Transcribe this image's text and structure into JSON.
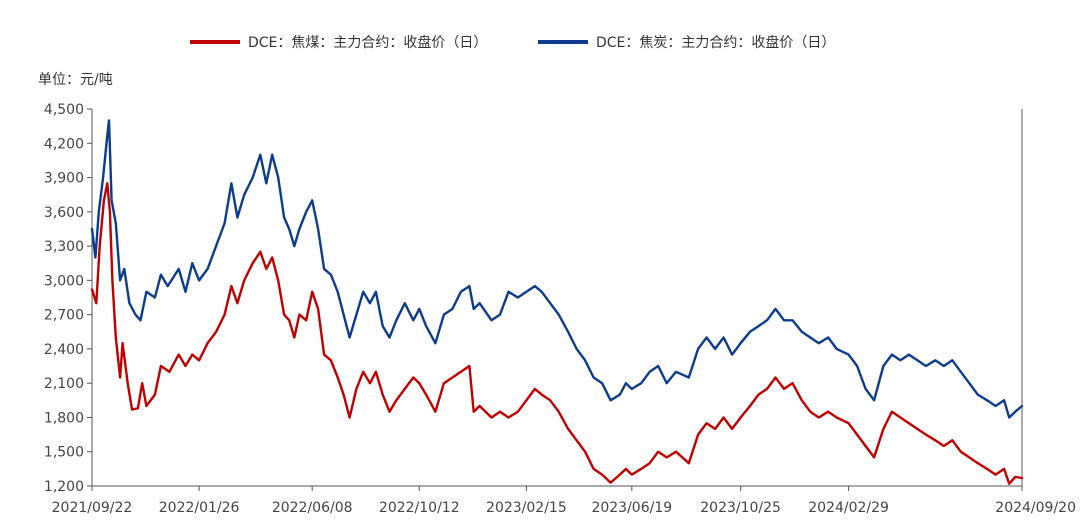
{
  "chart_data": {
    "type": "line",
    "unit_label": "单位：元/吨",
    "x_tick_labels": [
      "2021/09/22",
      "2022/01/26",
      "2022/06/08",
      "2022/10/12",
      "2023/02/15",
      "2023/06/19",
      "2023/10/25",
      "2024/02/29",
      "2024/09/20"
    ],
    "x_range": [
      "2021/09/22",
      "2024/09/20"
    ],
    "ylim": [
      1200,
      4500
    ],
    "y_ticks": [
      1200,
      1500,
      1800,
      2100,
      2400,
      2700,
      3000,
      3300,
      3600,
      3900,
      4200,
      4500
    ],
    "y_tick_labels": [
      "1,200",
      "1,500",
      "1,800",
      "2,100",
      "2,400",
      "2,700",
      "3,000",
      "3,300",
      "3,600",
      "3,900",
      "4,200",
      "4,500"
    ],
    "grid": false,
    "legend_position": "top-center",
    "series": [
      {
        "name": "DCE：焦煤：主力合约：收盘价（日）",
        "color": "#c00000",
        "points": [
          [
            "2021/09/22",
            2920
          ],
          [
            "2021/09/27",
            2800
          ],
          [
            "2021/10/01",
            3300
          ],
          [
            "2021/10/06",
            3700
          ],
          [
            "2021/10/10",
            3850
          ],
          [
            "2021/10/13",
            3600
          ],
          [
            "2021/10/16",
            3000
          ],
          [
            "2021/10/20",
            2500
          ],
          [
            "2021/10/25",
            2150
          ],
          [
            "2021/10/28",
            2450
          ],
          [
            "2021/11/03",
            2100
          ],
          [
            "2021/11/08",
            1870
          ],
          [
            "2021/11/15",
            1880
          ],
          [
            "2021/11/20",
            2100
          ],
          [
            "2021/11/25",
            1900
          ],
          [
            "2021/12/05",
            2000
          ],
          [
            "2021/12/12",
            2250
          ],
          [
            "2021/12/22",
            2200
          ],
          [
            "2022/01/02",
            2350
          ],
          [
            "2022/01/10",
            2250
          ],
          [
            "2022/01/18",
            2350
          ],
          [
            "2022/01/26",
            2300
          ],
          [
            "2022/02/05",
            2450
          ],
          [
            "2022/02/15",
            2550
          ],
          [
            "2022/02/25",
            2700
          ],
          [
            "2022/03/05",
            2950
          ],
          [
            "2022/03/12",
            2800
          ],
          [
            "2022/03/20",
            3000
          ],
          [
            "2022/03/30",
            3150
          ],
          [
            "2022/04/08",
            3250
          ],
          [
            "2022/04/15",
            3100
          ],
          [
            "2022/04/22",
            3200
          ],
          [
            "2022/04/29",
            3000
          ],
          [
            "2022/05/06",
            2700
          ],
          [
            "2022/05/12",
            2650
          ],
          [
            "2022/05/18",
            2500
          ],
          [
            "2022/05/24",
            2700
          ],
          [
            "2022/06/01",
            2650
          ],
          [
            "2022/06/08",
            2900
          ],
          [
            "2022/06/15",
            2750
          ],
          [
            "2022/06/22",
            2350
          ],
          [
            "2022/06/30",
            2300
          ],
          [
            "2022/07/08",
            2150
          ],
          [
            "2022/07/15",
            2000
          ],
          [
            "2022/07/22",
            1800
          ],
          [
            "2022/07/30",
            2050
          ],
          [
            "2022/08/07",
            2200
          ],
          [
            "2022/08/15",
            2100
          ],
          [
            "2022/08/22",
            2200
          ],
          [
            "2022/08/30",
            2000
          ],
          [
            "2022/09/07",
            1850
          ],
          [
            "2022/09/15",
            1950
          ],
          [
            "2022/09/25",
            2050
          ],
          [
            "2022/10/05",
            2150
          ],
          [
            "2022/10/12",
            2100
          ],
          [
            "2022/10/20",
            2000
          ],
          [
            "2022/10/31",
            1850
          ],
          [
            "2022/11/10",
            2100
          ],
          [
            "2022/11/20",
            2150
          ],
          [
            "2022/11/30",
            2200
          ],
          [
            "2022/12/10",
            2250
          ],
          [
            "2022/12/15",
            1850
          ],
          [
            "2022/12/22",
            1900
          ],
          [
            "2023/01/05",
            1800
          ],
          [
            "2023/01/15",
            1850
          ],
          [
            "2023/01/25",
            1800
          ],
          [
            "2023/02/05",
            1850
          ],
          [
            "2023/02/15",
            1950
          ],
          [
            "2023/02/25",
            2050
          ],
          [
            "2023/03/05",
            2000
          ],
          [
            "2023/03/15",
            1950
          ],
          [
            "2023/03/25",
            1850
          ],
          [
            "2023/04/05",
            1700
          ],
          [
            "2023/04/15",
            1600
          ],
          [
            "2023/04/25",
            1500
          ],
          [
            "2023/05/05",
            1350
          ],
          [
            "2023/05/15",
            1300
          ],
          [
            "2023/05/25",
            1230
          ],
          [
            "2023/06/05",
            1300
          ],
          [
            "2023/06/12",
            1350
          ],
          [
            "2023/06/19",
            1300
          ],
          [
            "2023/06/30",
            1350
          ],
          [
            "2023/07/10",
            1400
          ],
          [
            "2023/07/20",
            1500
          ],
          [
            "2023/07/30",
            1450
          ],
          [
            "2023/08/10",
            1500
          ],
          [
            "2023/08/25",
            1400
          ],
          [
            "2023/09/05",
            1650
          ],
          [
            "2023/09/15",
            1750
          ],
          [
            "2023/09/25",
            1700
          ],
          [
            "2023/10/05",
            1800
          ],
          [
            "2023/10/15",
            1700
          ],
          [
            "2023/10/25",
            1800
          ],
          [
            "2023/11/05",
            1900
          ],
          [
            "2023/11/15",
            2000
          ],
          [
            "2023/11/25",
            2050
          ],
          [
            "2023/12/05",
            2150
          ],
          [
            "2023/12/15",
            2050
          ],
          [
            "2023/12/25",
            2100
          ],
          [
            "2024/01/05",
            1950
          ],
          [
            "2024/01/15",
            1850
          ],
          [
            "2024/01/25",
            1800
          ],
          [
            "2024/02/05",
            1850
          ],
          [
            "2024/02/15",
            1800
          ],
          [
            "2024/02/29",
            1750
          ],
          [
            "2024/03/10",
            1650
          ],
          [
            "2024/03/20",
            1550
          ],
          [
            "2024/03/30",
            1450
          ],
          [
            "2024/04/10",
            1700
          ],
          [
            "2024/04/20",
            1850
          ],
          [
            "2024/04/30",
            1800
          ],
          [
            "2024/05/10",
            1750
          ],
          [
            "2024/05/20",
            1700
          ],
          [
            "2024/05/30",
            1650
          ],
          [
            "2024/06/10",
            1600
          ],
          [
            "2024/06/20",
            1550
          ],
          [
            "2024/06/30",
            1600
          ],
          [
            "2024/07/10",
            1500
          ],
          [
            "2024/07/20",
            1450
          ],
          [
            "2024/07/30",
            1400
          ],
          [
            "2024/08/10",
            1350
          ],
          [
            "2024/08/20",
            1300
          ],
          [
            "2024/08/30",
            1350
          ],
          [
            "2024/09/05",
            1220
          ],
          [
            "2024/09/12",
            1280
          ],
          [
            "2024/09/20",
            1270
          ]
        ]
      },
      {
        "name": "DCE：焦炭：主力合约：收盘价（日）",
        "color": "#0d3c8c",
        "points": [
          [
            "2021/09/22",
            3450
          ],
          [
            "2021/09/26",
            3200
          ],
          [
            "2021/09/30",
            3600
          ],
          [
            "2021/10/05",
            3900
          ],
          [
            "2021/10/09",
            4200
          ],
          [
            "2021/10/12",
            4400
          ],
          [
            "2021/10/15",
            3700
          ],
          [
            "2021/10/20",
            3500
          ],
          [
            "2021/10/25",
            3000
          ],
          [
            "2021/10/30",
            3100
          ],
          [
            "2021/11/05",
            2800
          ],
          [
            "2021/11/12",
            2700
          ],
          [
            "2021/11/18",
            2650
          ],
          [
            "2021/11/25",
            2900
          ],
          [
            "2021/12/05",
            2850
          ],
          [
            "2021/12/12",
            3050
          ],
          [
            "2021/12/20",
            2950
          ],
          [
            "2022/01/02",
            3100
          ],
          [
            "2022/01/10",
            2900
          ],
          [
            "2022/01/18",
            3150
          ],
          [
            "2022/01/26",
            3000
          ],
          [
            "2022/02/05",
            3100
          ],
          [
            "2022/02/15",
            3300
          ],
          [
            "2022/02/25",
            3500
          ],
          [
            "2022/03/05",
            3850
          ],
          [
            "2022/03/12",
            3550
          ],
          [
            "2022/03/20",
            3750
          ],
          [
            "2022/03/30",
            3900
          ],
          [
            "2022/04/08",
            4100
          ],
          [
            "2022/04/15",
            3850
          ],
          [
            "2022/04/22",
            4100
          ],
          [
            "2022/04/29",
            3900
          ],
          [
            "2022/05/06",
            3550
          ],
          [
            "2022/05/12",
            3450
          ],
          [
            "2022/05/18",
            3300
          ],
          [
            "2022/05/24",
            3450
          ],
          [
            "2022/06/01",
            3600
          ],
          [
            "2022/06/08",
            3700
          ],
          [
            "2022/06/15",
            3450
          ],
          [
            "2022/06/22",
            3100
          ],
          [
            "2022/06/30",
            3050
          ],
          [
            "2022/07/08",
            2900
          ],
          [
            "2022/07/15",
            2700
          ],
          [
            "2022/07/22",
            2500
          ],
          [
            "2022/07/30",
            2700
          ],
          [
            "2022/08/07",
            2900
          ],
          [
            "2022/08/15",
            2800
          ],
          [
            "2022/08/22",
            2900
          ],
          [
            "2022/08/30",
            2600
          ],
          [
            "2022/09/07",
            2500
          ],
          [
            "2022/09/15",
            2650
          ],
          [
            "2022/09/25",
            2800
          ],
          [
            "2022/10/05",
            2650
          ],
          [
            "2022/10/12",
            2750
          ],
          [
            "2022/10/20",
            2600
          ],
          [
            "2022/10/31",
            2450
          ],
          [
            "2022/11/10",
            2700
          ],
          [
            "2022/11/20",
            2750
          ],
          [
            "2022/11/30",
            2900
          ],
          [
            "2022/12/10",
            2950
          ],
          [
            "2022/12/15",
            2750
          ],
          [
            "2022/12/22",
            2800
          ],
          [
            "2023/01/05",
            2650
          ],
          [
            "2023/01/15",
            2700
          ],
          [
            "2023/01/25",
            2900
          ],
          [
            "2023/02/05",
            2850
          ],
          [
            "2023/02/15",
            2900
          ],
          [
            "2023/02/25",
            2950
          ],
          [
            "2023/03/05",
            2900
          ],
          [
            "2023/03/15",
            2800
          ],
          [
            "2023/03/25",
            2700
          ],
          [
            "2023/04/05",
            2550
          ],
          [
            "2023/04/15",
            2400
          ],
          [
            "2023/04/25",
            2300
          ],
          [
            "2023/05/05",
            2150
          ],
          [
            "2023/05/15",
            2100
          ],
          [
            "2023/05/25",
            1950
          ],
          [
            "2023/06/05",
            2000
          ],
          [
            "2023/06/12",
            2100
          ],
          [
            "2023/06/19",
            2050
          ],
          [
            "2023/06/30",
            2100
          ],
          [
            "2023/07/10",
            2200
          ],
          [
            "2023/07/20",
            2250
          ],
          [
            "2023/07/30",
            2100
          ],
          [
            "2023/08/10",
            2200
          ],
          [
            "2023/08/25",
            2150
          ],
          [
            "2023/09/05",
            2400
          ],
          [
            "2023/09/15",
            2500
          ],
          [
            "2023/09/25",
            2400
          ],
          [
            "2023/10/05",
            2500
          ],
          [
            "2023/10/15",
            2350
          ],
          [
            "2023/10/25",
            2450
          ],
          [
            "2023/11/05",
            2550
          ],
          [
            "2023/11/15",
            2600
          ],
          [
            "2023/11/25",
            2650
          ],
          [
            "2023/12/05",
            2750
          ],
          [
            "2023/12/15",
            2650
          ],
          [
            "2023/12/25",
            2650
          ],
          [
            "2024/01/05",
            2550
          ],
          [
            "2024/01/15",
            2500
          ],
          [
            "2024/01/25",
            2450
          ],
          [
            "2024/02/05",
            2500
          ],
          [
            "2024/02/15",
            2400
          ],
          [
            "2024/02/29",
            2350
          ],
          [
            "2024/03/10",
            2250
          ],
          [
            "2024/03/20",
            2050
          ],
          [
            "2024/03/30",
            1950
          ],
          [
            "2024/04/10",
            2250
          ],
          [
            "2024/04/20",
            2350
          ],
          [
            "2024/04/30",
            2300
          ],
          [
            "2024/05/10",
            2350
          ],
          [
            "2024/05/20",
            2300
          ],
          [
            "2024/05/30",
            2250
          ],
          [
            "2024/06/10",
            2300
          ],
          [
            "2024/06/20",
            2250
          ],
          [
            "2024/06/30",
            2300
          ],
          [
            "2024/07/10",
            2200
          ],
          [
            "2024/07/20",
            2100
          ],
          [
            "2024/07/30",
            2000
          ],
          [
            "2024/08/10",
            1950
          ],
          [
            "2024/08/20",
            1900
          ],
          [
            "2024/08/30",
            1950
          ],
          [
            "2024/09/05",
            1800
          ],
          [
            "2024/09/12",
            1850
          ],
          [
            "2024/09/20",
            1900
          ]
        ]
      }
    ]
  }
}
